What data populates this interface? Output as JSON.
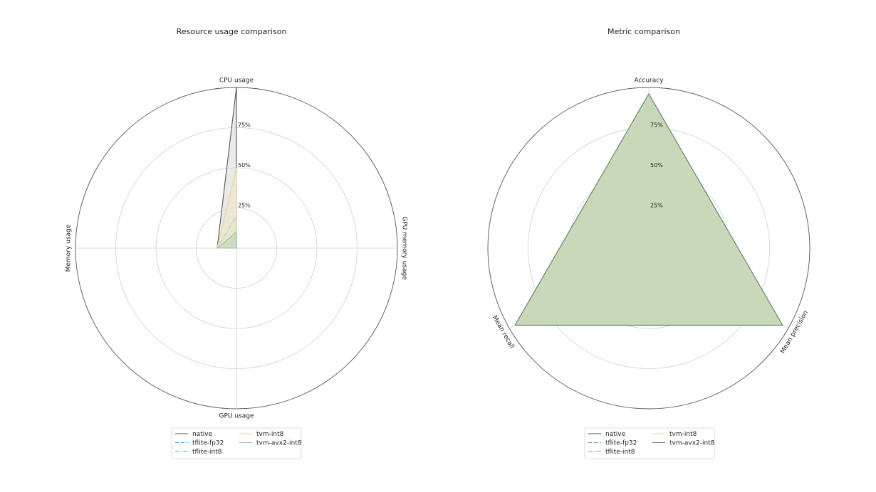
{
  "chart_data": [
    {
      "type": "radar",
      "title": "Resource usage comparison",
      "axes": [
        "CPU usage",
        "GPU memory usage",
        "GPU usage",
        "Memory usage"
      ],
      "rlim": [
        0,
        100
      ],
      "rticks": [
        25,
        50,
        75
      ],
      "rtick_labels": [
        "25%",
        "50%",
        "75%"
      ],
      "grid": true,
      "legend_placement": "bottom-center",
      "legend_columns": 2,
      "series": [
        {
          "name": "native",
          "values": [
            100,
            0,
            0,
            12
          ],
          "color": "#555555",
          "fill": "#d9d9d9",
          "dash": "solid"
        },
        {
          "name": "tflite-fp32",
          "values": [
            12,
            0,
            0,
            4
          ],
          "color": "#4da3e6",
          "fill": "#cde3f3",
          "dash": "dashed"
        },
        {
          "name": "tflite-int8",
          "values": [
            20,
            0,
            0,
            12
          ],
          "color": "#55bb55",
          "fill": "#d4edcc",
          "dash": "dashdot"
        },
        {
          "name": "tvm-int8",
          "values": [
            50,
            0,
            0,
            12
          ],
          "color": "#e8d49a",
          "fill": "#efe4c3",
          "dash": "solid"
        },
        {
          "name": "tvm-avx2-int8",
          "values": [
            10,
            0,
            0,
            12
          ],
          "color": "#9bc49b",
          "fill": "#b9d6b4",
          "dash": "solid"
        }
      ]
    },
    {
      "type": "radar",
      "title": "Metric comparison",
      "axes": [
        "Accuracy",
        "Mean precision",
        "Mean recall"
      ],
      "rlim": [
        0,
        100
      ],
      "rticks": [
        25,
        50,
        75
      ],
      "rtick_labels": [
        "25%",
        "50%",
        "75%"
      ],
      "grid": true,
      "legend_placement": "bottom-center",
      "legend_columns": 2,
      "series": [
        {
          "name": "native",
          "values": [
            96,
            96,
            96
          ],
          "color": "#555555",
          "fill": "#d9d9d9",
          "dash": "solid"
        },
        {
          "name": "tflite-fp32",
          "values": [
            96,
            96,
            96
          ],
          "color": "#4da3e6",
          "fill": "#cde3f3",
          "dash": "dashed"
        },
        {
          "name": "tflite-int8",
          "values": [
            96,
            96,
            96
          ],
          "color": "#55bb55",
          "fill": "#d4edcc",
          "dash": "dashdot"
        },
        {
          "name": "tvm-int8",
          "values": [
            96,
            96,
            96
          ],
          "color": "#e8d49a",
          "fill": "#efe4c3",
          "dash": "solid"
        },
        {
          "name": "tvm-avx2-int8",
          "values": [
            96,
            96,
            96
          ],
          "color": "#5e8c6a",
          "fill": "#b3cca8",
          "dash": "solid"
        }
      ]
    }
  ]
}
